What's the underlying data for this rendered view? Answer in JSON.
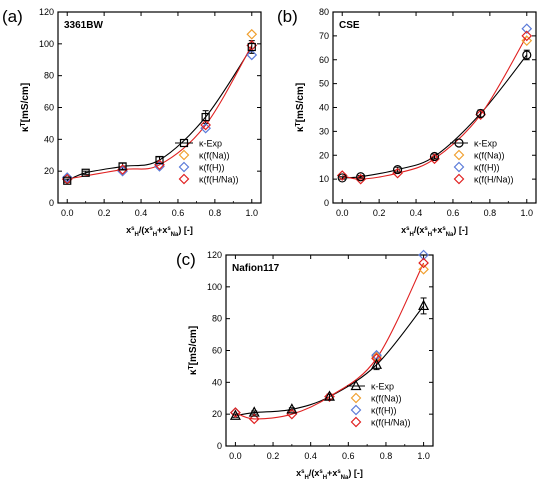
{
  "chart_data": [
    {
      "panel_label": "(a)",
      "name": "3361BW",
      "type": "line",
      "ylabel": "κ^T[mS/cm]",
      "xlabel": "x",
      "xlim": [
        -0.05,
        1.05
      ],
      "ylim": [
        0,
        120
      ],
      "xticks": [
        "0.0",
        "0.2",
        "0.4",
        "0.6",
        "0.8",
        "1.0"
      ],
      "yticks": [
        "0",
        "20",
        "40",
        "60",
        "80",
        "100",
        "120"
      ],
      "legend_position": "bottom-right",
      "series": [
        {
          "name": "κ-Exp",
          "x": [
            0.0,
            0.1,
            0.3,
            0.5,
            0.75,
            1.0
          ],
          "y": [
            14,
            19,
            23,
            27,
            54,
            98
          ],
          "yerr": [
            1,
            1,
            2,
            2,
            4,
            4
          ]
        },
        {
          "name": "κ(f(Na))",
          "x": [
            0.0,
            1.0
          ],
          "y": [
            15,
            106
          ]
        },
        {
          "name": "κ(f(H))",
          "x": [
            0.0,
            0.3,
            0.5,
            0.75,
            1.0
          ],
          "y": [
            16,
            20,
            23,
            47,
            93
          ]
        },
        {
          "name": "κ(f(H/Na))",
          "x": [
            0.0,
            0.3,
            0.5,
            0.75,
            1.0
          ],
          "y": [
            15,
            21,
            24,
            49,
            99
          ]
        }
      ]
    },
    {
      "panel_label": "(b)",
      "name": "CSE",
      "type": "line",
      "ylabel": "κ^T[mS/cm]",
      "xlabel": "x",
      "xlim": [
        -0.05,
        1.05
      ],
      "ylim": [
        0,
        80
      ],
      "xticks": [
        "0.0",
        "0.2",
        "0.4",
        "0.6",
        "0.8",
        "1.0"
      ],
      "yticks": [
        "0",
        "10",
        "20",
        "30",
        "40",
        "50",
        "60",
        "70",
        "80"
      ],
      "legend_position": "bottom-right",
      "series": [
        {
          "name": "κ-Exp",
          "x": [
            0.0,
            0.1,
            0.3,
            0.5,
            0.75,
            1.0
          ],
          "y": [
            10.5,
            11,
            14,
            19.5,
            37.5,
            62
          ],
          "yerr": [
            0.5,
            0.5,
            1,
            1,
            1.5,
            2
          ]
        },
        {
          "name": "κ(f(Na))",
          "x": [
            1.0
          ],
          "y": [
            68
          ]
        },
        {
          "name": "κ(f(H))",
          "x": [
            1.0
          ],
          "y": [
            73
          ]
        },
        {
          "name": "κ(f(H/Na))",
          "x": [
            0.0,
            0.1,
            0.3,
            0.5,
            0.75,
            1.0
          ],
          "y": [
            11.5,
            10,
            12.5,
            18.5,
            37,
            70
          ]
        }
      ]
    },
    {
      "panel_label": "(c)",
      "name": "Nafion117",
      "type": "line",
      "ylabel": "κ^T[mS/cm]",
      "xlabel": "x",
      "xlim": [
        -0.05,
        1.05
      ],
      "ylim": [
        0,
        120
      ],
      "xticks": [
        "0.0",
        "0.2",
        "0.4",
        "0.6",
        "0.8",
        "1.0"
      ],
      "yticks": [
        "0",
        "20",
        "40",
        "60",
        "80",
        "100",
        "120"
      ],
      "legend_position": "bottom-right",
      "series": [
        {
          "name": "κ-Exp",
          "x": [
            0.0,
            0.1,
            0.3,
            0.5,
            0.75,
            1.0
          ],
          "y": [
            19,
            21,
            23,
            31,
            51,
            88
          ],
          "yerr": [
            1,
            1,
            1,
            1.5,
            3,
            5
          ]
        },
        {
          "name": "κ(f(Na))",
          "x": [
            0.0,
            0.75,
            1.0
          ],
          "y": [
            21,
            56,
            111
          ]
        },
        {
          "name": "κ(f(H))",
          "x": [
            0.0,
            0.75,
            1.0
          ],
          "y": [
            21,
            57,
            120
          ]
        },
        {
          "name": "κ(f(H/Na))",
          "x": [
            0.0,
            0.1,
            0.3,
            0.5,
            0.75,
            1.0
          ],
          "y": [
            21,
            17,
            20,
            31,
            55,
            115
          ]
        }
      ]
    }
  ],
  "style": {
    "colors": {
      "exp": "#000000",
      "na": "#f0a030",
      "h": "#5b7bd9",
      "hna": "#e02020",
      "fit": "#e02020"
    },
    "markers": {
      "κ-Exp": "square|circle|triangle",
      "κ(f(Na))": "diamond",
      "κ(f(H))": "diamond",
      "κ(f(H/Na))": "diamond"
    }
  },
  "xaxis_title": {
    "x": "x",
    "s": "s",
    "H": "H",
    "Na": "Na",
    "lp": "/(",
    "plus": "+",
    "rp": ") [-]"
  }
}
